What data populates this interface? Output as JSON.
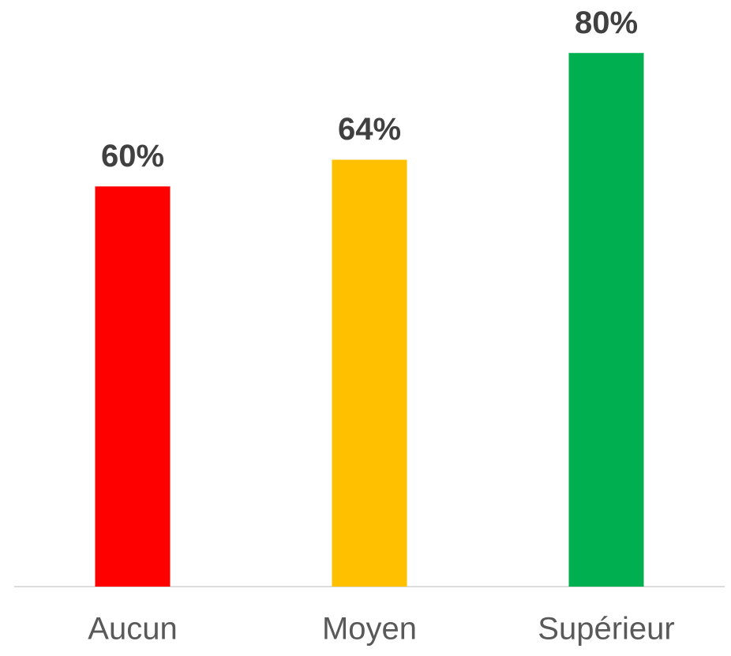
{
  "chart_data": {
    "type": "bar",
    "categories": [
      "Aucun",
      "Moyen",
      "Supérieur"
    ],
    "values": [
      60,
      64,
      80
    ],
    "value_labels": [
      "60%",
      "64%",
      "80%"
    ],
    "colors": [
      "#ff0000",
      "#ffc000",
      "#00b050"
    ]
  }
}
